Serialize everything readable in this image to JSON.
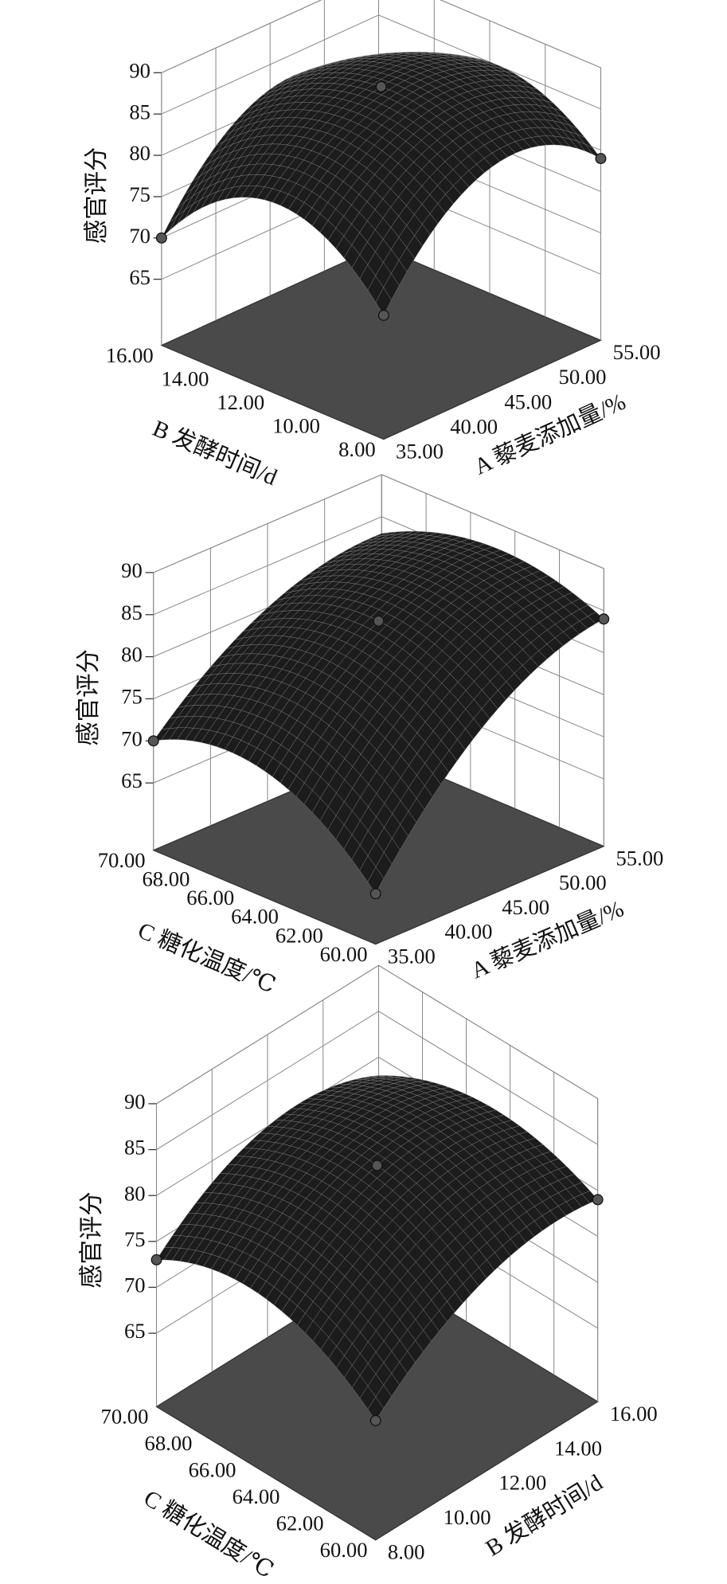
{
  "chart_data": [
    {
      "type": "surface",
      "zlabel": "感官评分",
      "xlabel": "A 藜麦添加量/%",
      "ylabel": "B 发酵时间/d",
      "xlim": [
        35,
        55
      ],
      "xticks": [
        {
          "value": 35,
          "label": "35.00"
        },
        {
          "value": 40,
          "label": "40.00"
        },
        {
          "value": 45,
          "label": "45.00"
        },
        {
          "value": 50,
          "label": "50.00"
        },
        {
          "value": 55,
          "label": "55.00"
        }
      ],
      "ylim": [
        8,
        16
      ],
      "yticks": [
        {
          "value": 8,
          "label": "8.00"
        },
        {
          "value": 10,
          "label": "10.00"
        },
        {
          "value": 12,
          "label": "12.00"
        },
        {
          "value": 14,
          "label": "14.00"
        },
        {
          "value": 16,
          "label": "16.00"
        }
      ],
      "zlim": [
        57,
        90
      ],
      "zticks": [
        65,
        70,
        75,
        80,
        85,
        90
      ],
      "values": [
        [
          72,
          84,
          79
        ],
        [
          80,
          88,
          85
        ],
        [
          70,
          82,
          77
        ]
      ]
    },
    {
      "type": "surface",
      "zlabel": "感官评分",
      "xlabel": "A 藜麦添加量/%",
      "ylabel": "C 糖化温度/℃",
      "xlim": [
        35,
        55
      ],
      "xticks": [
        {
          "value": 35,
          "label": "35.00"
        },
        {
          "value": 40,
          "label": "40.00"
        },
        {
          "value": 45,
          "label": "45.00"
        },
        {
          "value": 50,
          "label": "50.00"
        },
        {
          "value": 55,
          "label": "55.00"
        }
      ],
      "ylim": [
        60,
        70
      ],
      "yticks": [
        {
          "value": 60,
          "label": "60.00"
        },
        {
          "value": 62,
          "label": "62.00"
        },
        {
          "value": 64,
          "label": "64.00"
        },
        {
          "value": 66,
          "label": "66.00"
        },
        {
          "value": 68,
          "label": "68.00"
        },
        {
          "value": 70,
          "label": "70.00"
        }
      ],
      "zlim": [
        57,
        90
      ],
      "zticks": [
        65,
        70,
        75,
        80,
        85,
        90
      ],
      "values": [
        [
          63,
          78,
          84
        ],
        [
          72,
          84,
          87
        ],
        [
          70,
          80,
          83
        ]
      ]
    },
    {
      "type": "surface",
      "zlabel": "感官评分",
      "xlabel": "B 发酵时间/d",
      "ylabel": "C 糖化温度/℃",
      "xlim": [
        8,
        16
      ],
      "xticks": [
        {
          "value": 8,
          "label": "8.00"
        },
        {
          "value": 10,
          "label": "10.00"
        },
        {
          "value": 12,
          "label": "12.00"
        },
        {
          "value": 14,
          "label": "14.00"
        },
        {
          "value": 16,
          "label": "16.00"
        }
      ],
      "ylim": [
        60,
        70
      ],
      "yticks": [
        {
          "value": 60,
          "label": "60.00"
        },
        {
          "value": 62,
          "label": "62.00"
        },
        {
          "value": 64,
          "label": "64.00"
        },
        {
          "value": 66,
          "label": "66.00"
        },
        {
          "value": 68,
          "label": "68.00"
        },
        {
          "value": 70,
          "label": "70.00"
        }
      ],
      "zlim": [
        57,
        90
      ],
      "zticks": [
        65,
        70,
        75,
        80,
        85,
        90
      ],
      "values": [
        [
          70,
          78,
          79
        ],
        [
          76,
          83,
          82
        ],
        [
          73,
          80,
          78
        ]
      ]
    }
  ]
}
